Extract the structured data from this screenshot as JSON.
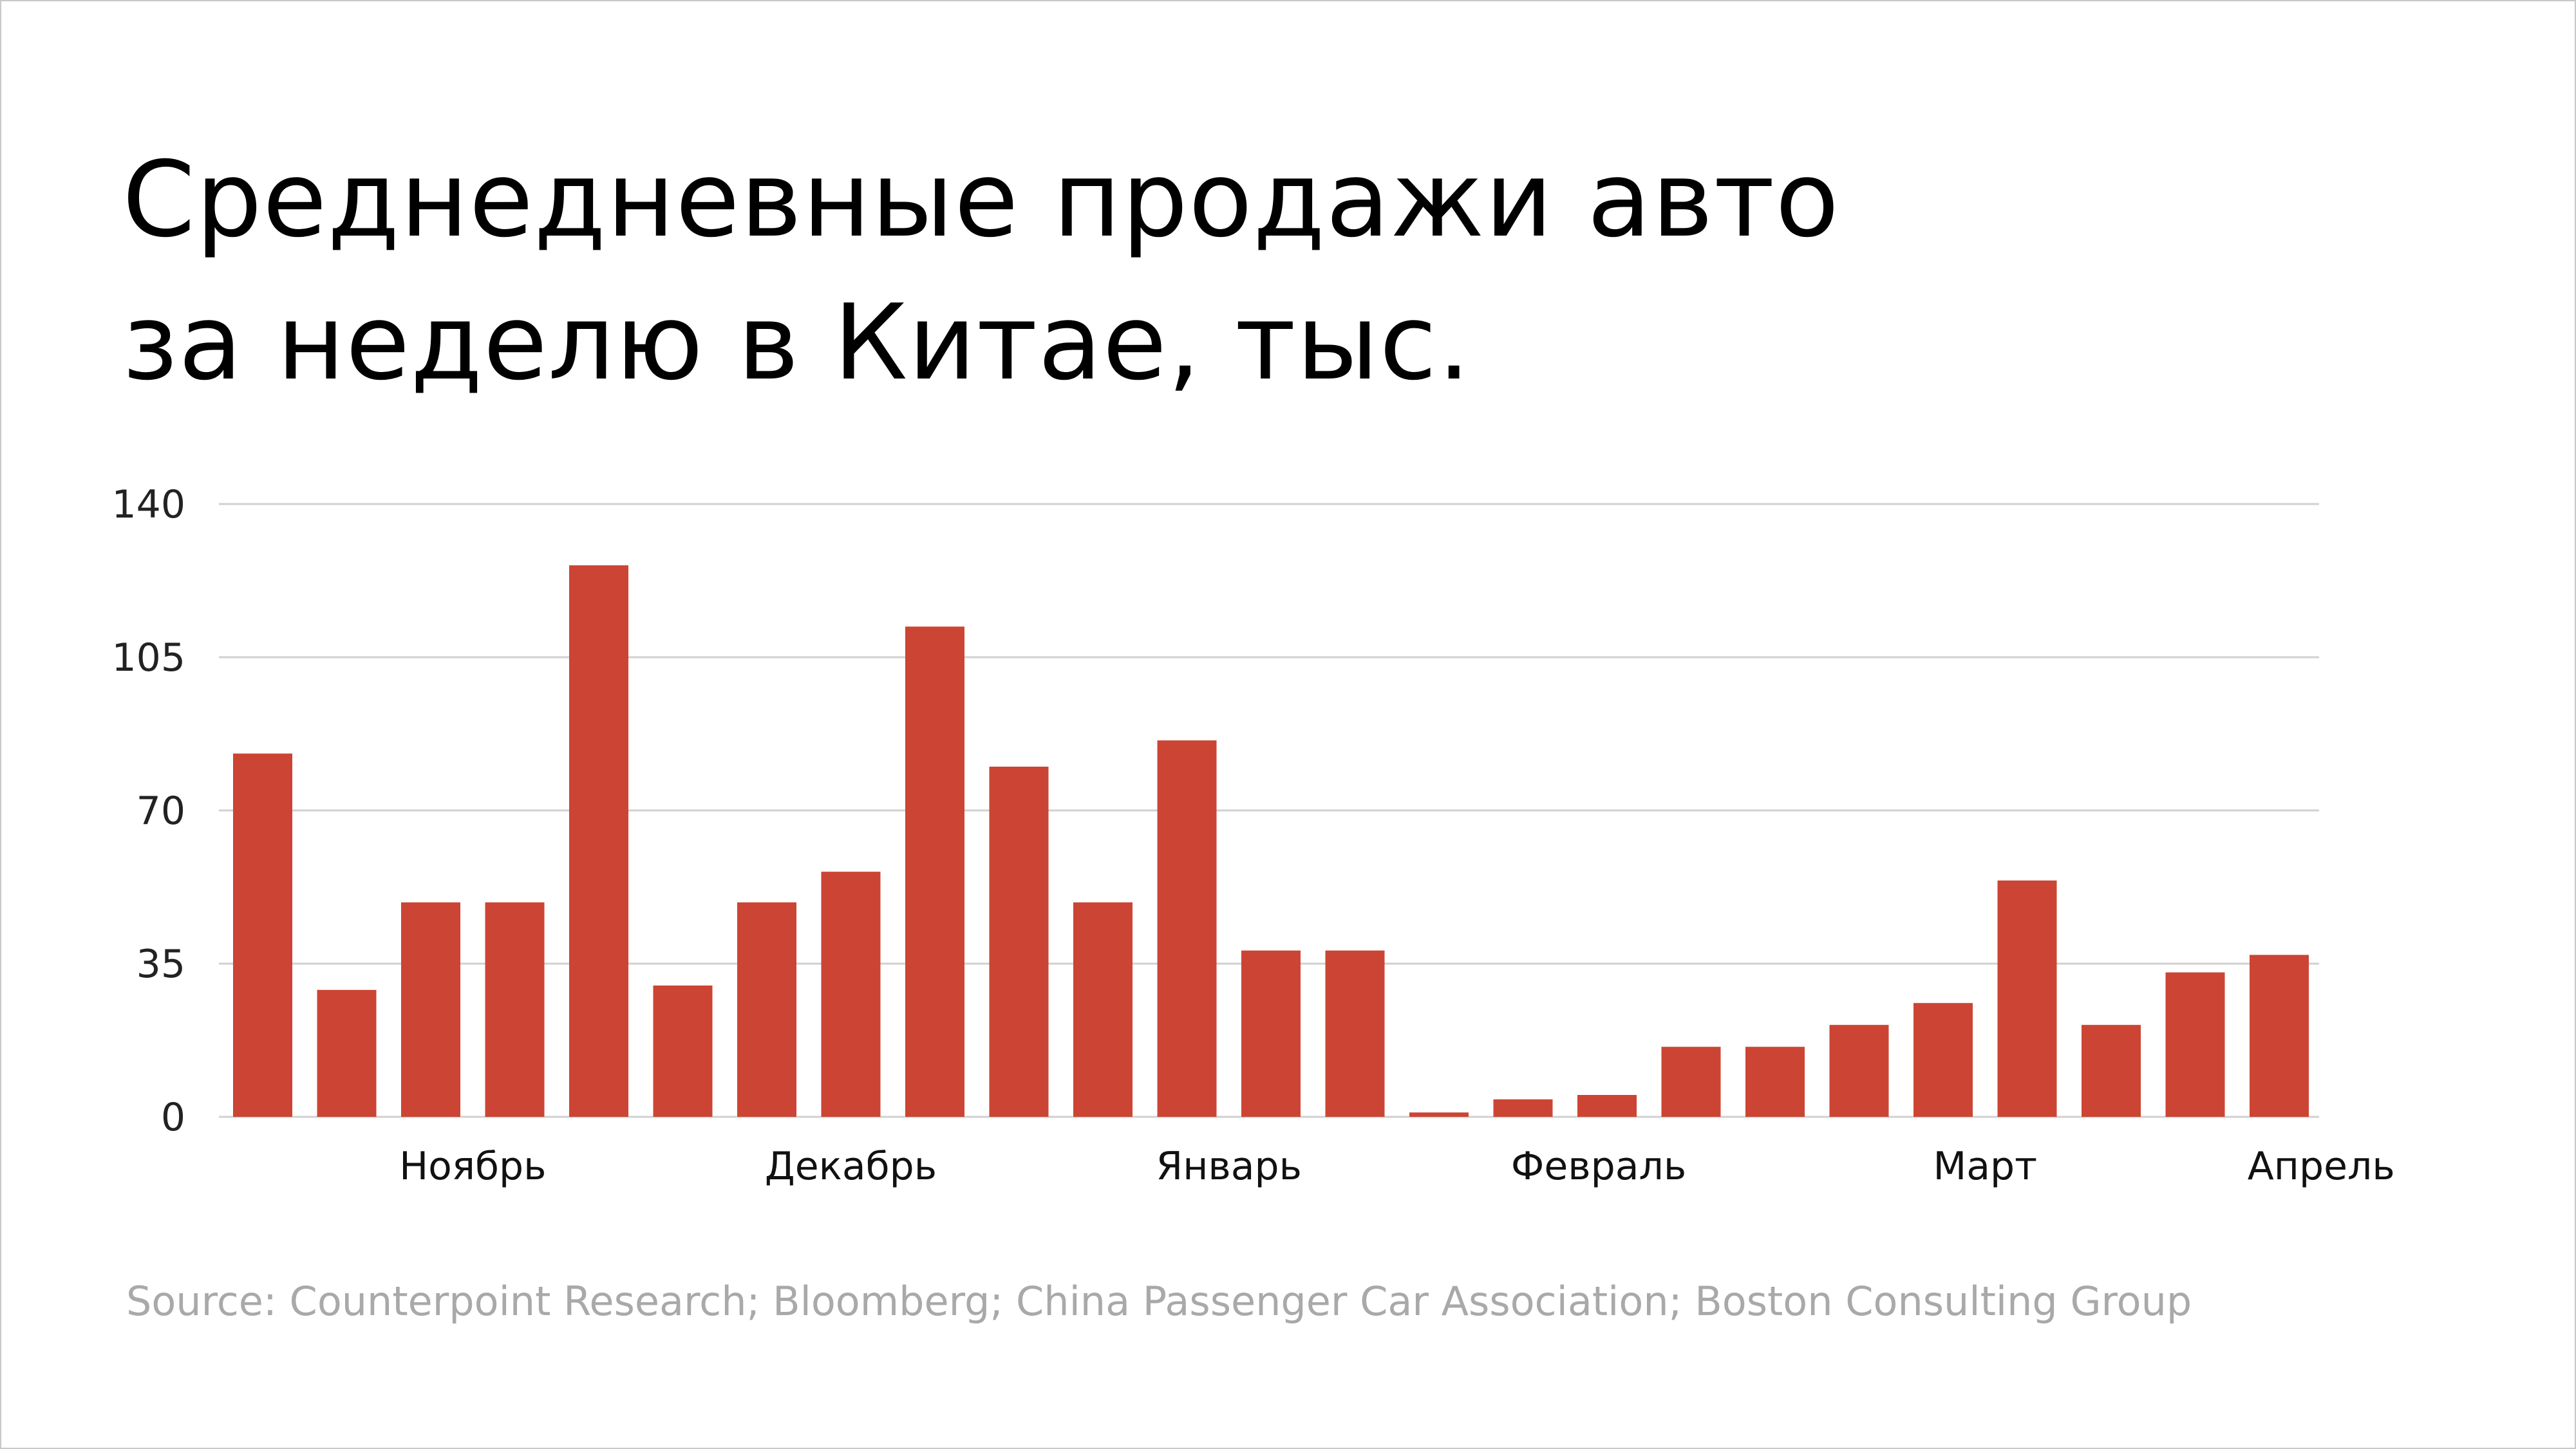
{
  "title_lines": [
    "Среднедневные продажи авто",
    "за неделю в Китае, тыс."
  ],
  "source": "Source: Counterpoint Research; Bloomberg; China Passenger Car Association; Boston Consulting Group",
  "chart_data": {
    "type": "bar",
    "title": "Среднедневные продажи авто за неделю в Китае, тыс.",
    "xlabel": "",
    "ylabel": "",
    "ylim": [
      0,
      140
    ],
    "y_ticks": [
      0,
      35,
      70,
      105,
      140
    ],
    "grid": true,
    "bar_color": "#cc4433",
    "month_labels": [
      {
        "label": "Ноябрь",
        "center_week": 2.5
      },
      {
        "label": "Декабрь",
        "center_week": 7
      },
      {
        "label": "Январь",
        "center_week": 11.5
      },
      {
        "label": "Февраль",
        "center_week": 15.9
      },
      {
        "label": "Март",
        "center_week": 20.5
      },
      {
        "label": "Апрель",
        "center_week": 24.5
      }
    ],
    "values": [
      83,
      29,
      49,
      49,
      126,
      30,
      49,
      56,
      112,
      80,
      49,
      86,
      38,
      38,
      1,
      4,
      5,
      16,
      16,
      21,
      26,
      54,
      21,
      33,
      37
    ]
  }
}
